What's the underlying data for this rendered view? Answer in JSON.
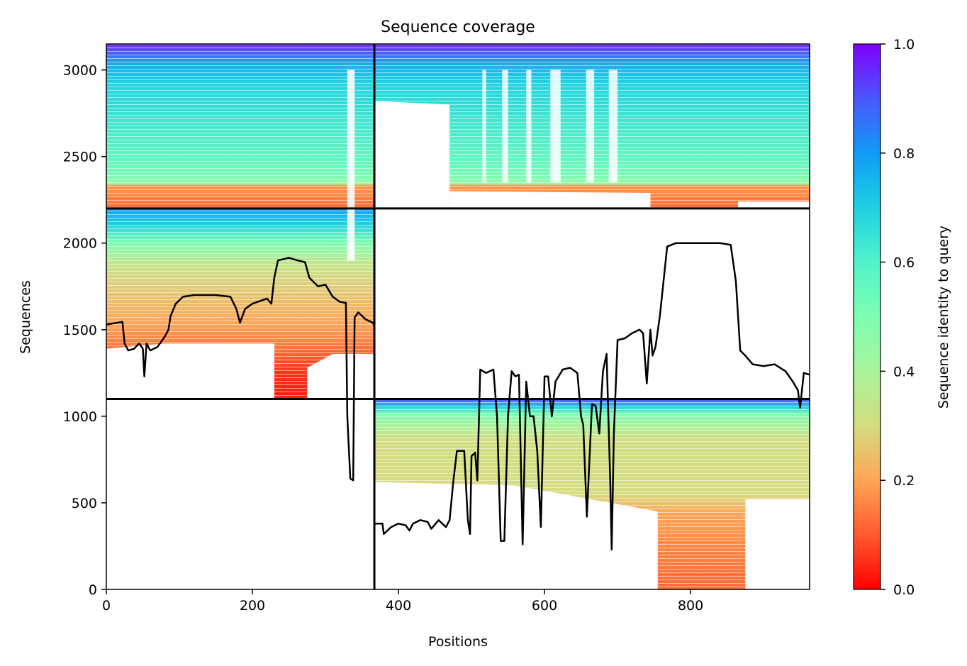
{
  "chart_data": {
    "type": "heatmap",
    "title": "Sequence coverage",
    "xlabel": "Positions",
    "ylabel": "Sequences",
    "xlim": [
      0,
      963
    ],
    "ylim": [
      0,
      3150
    ],
    "x_ticks": [
      "0",
      "200",
      "400",
      "600",
      "800"
    ],
    "x_tick_values": [
      0,
      200,
      400,
      600,
      800
    ],
    "y_ticks": [
      "0",
      "500",
      "1000",
      "1500",
      "2000",
      "2500",
      "3000"
    ],
    "y_tick_values": [
      0,
      500,
      1000,
      1500,
      2000,
      2500,
      3000
    ],
    "colorbar": {
      "label": "Sequence identity to query",
      "range": [
        0.0,
        1.0
      ],
      "ticks": [
        "0.0",
        "0.2",
        "0.4",
        "0.6",
        "0.8",
        "1.0"
      ],
      "tick_values": [
        0.0,
        0.2,
        0.4,
        0.6,
        0.8,
        1.0
      ],
      "colormap": "rainbow_r"
    },
    "chain_boundaries": {
      "x": [
        367
      ],
      "y": [
        1100,
        2200
      ]
    },
    "blocks": [
      {
        "name": "chain-A-only",
        "x_range": [
          0,
          367
        ],
        "y_range": [
          2200,
          3150
        ],
        "identity_top": 1.0,
        "identity_bottom": 0.2
      },
      {
        "name": "chain-B-partial",
        "x_range": [
          367,
          963
        ],
        "y_range": [
          2200,
          3150
        ],
        "identity_top": 1.0,
        "identity_bottom": 0.2
      },
      {
        "name": "chain-A-paired",
        "x_range": [
          0,
          367
        ],
        "y_range": [
          1100,
          2200
        ],
        "identity_top": 0.8,
        "identity_bottom": 0.0
      },
      {
        "name": "chain-B-only",
        "x_range": [
          367,
          963
        ],
        "y_range": [
          0,
          1100
        ],
        "identity_top": 1.0,
        "identity_bottom": 0.2
      }
    ],
    "coverage_line": {
      "color": "#000000",
      "points": [
        [
          0,
          1530
        ],
        [
          15,
          1540
        ],
        [
          22,
          1545
        ],
        [
          25,
          1420
        ],
        [
          30,
          1380
        ],
        [
          38,
          1390
        ],
        [
          45,
          1420
        ],
        [
          50,
          1390
        ],
        [
          52,
          1230
        ],
        [
          55,
          1420
        ],
        [
          60,
          1380
        ],
        [
          70,
          1400
        ],
        [
          80,
          1460
        ],
        [
          85,
          1500
        ],
        [
          88,
          1580
        ],
        [
          95,
          1650
        ],
        [
          105,
          1690
        ],
        [
          120,
          1700
        ],
        [
          150,
          1700
        ],
        [
          170,
          1690
        ],
        [
          178,
          1620
        ],
        [
          183,
          1540
        ],
        [
          190,
          1620
        ],
        [
          200,
          1650
        ],
        [
          220,
          1680
        ],
        [
          226,
          1650
        ],
        [
          230,
          1800
        ],
        [
          235,
          1900
        ],
        [
          250,
          1915
        ],
        [
          262,
          1900
        ],
        [
          272,
          1890
        ],
        [
          278,
          1800
        ],
        [
          290,
          1750
        ],
        [
          300,
          1760
        ],
        [
          310,
          1690
        ],
        [
          320,
          1660
        ],
        [
          328,
          1655
        ],
        [
          330,
          1000
        ],
        [
          334,
          640
        ],
        [
          338,
          630
        ],
        [
          340,
          1570
        ],
        [
          345,
          1600
        ],
        [
          355,
          1560
        ],
        [
          365,
          1540
        ],
        [
          367,
          1520
        ],
        [
          367,
          380
        ],
        [
          378,
          380
        ],
        [
          380,
          320
        ],
        [
          390,
          360
        ],
        [
          400,
          380
        ],
        [
          410,
          370
        ],
        [
          415,
          340
        ],
        [
          420,
          380
        ],
        [
          430,
          400
        ],
        [
          440,
          390
        ],
        [
          445,
          350
        ],
        [
          455,
          400
        ],
        [
          465,
          360
        ],
        [
          470,
          400
        ],
        [
          475,
          620
        ],
        [
          480,
          800
        ],
        [
          490,
          800
        ],
        [
          495,
          400
        ],
        [
          498,
          320
        ],
        [
          500,
          770
        ],
        [
          505,
          790
        ],
        [
          508,
          630
        ],
        [
          512,
          1270
        ],
        [
          520,
          1250
        ],
        [
          530,
          1270
        ],
        [
          535,
          1000
        ],
        [
          540,
          280
        ],
        [
          545,
          280
        ],
        [
          550,
          1000
        ],
        [
          555,
          1260
        ],
        [
          560,
          1230
        ],
        [
          565,
          1240
        ],
        [
          570,
          260
        ],
        [
          575,
          1200
        ],
        [
          580,
          1000
        ],
        [
          585,
          1000
        ],
        [
          590,
          800
        ],
        [
          595,
          360
        ],
        [
          600,
          1230
        ],
        [
          605,
          1230
        ],
        [
          610,
          1000
        ],
        [
          615,
          1200
        ],
        [
          625,
          1270
        ],
        [
          635,
          1280
        ],
        [
          645,
          1250
        ],
        [
          650,
          1000
        ],
        [
          653,
          950
        ],
        [
          658,
          420
        ],
        [
          665,
          1070
        ],
        [
          670,
          1060
        ],
        [
          675,
          900
        ],
        [
          680,
          1260
        ],
        [
          685,
          1360
        ],
        [
          690,
          620
        ],
        [
          692,
          230
        ],
        [
          695,
          900
        ],
        [
          700,
          1440
        ],
        [
          710,
          1450
        ],
        [
          720,
          1480
        ],
        [
          730,
          1500
        ],
        [
          735,
          1480
        ],
        [
          740,
          1190
        ],
        [
          745,
          1500
        ],
        [
          748,
          1350
        ],
        [
          752,
          1400
        ],
        [
          758,
          1580
        ],
        [
          768,
          1980
        ],
        [
          780,
          2000
        ],
        [
          800,
          2000
        ],
        [
          820,
          2000
        ],
        [
          840,
          2000
        ],
        [
          855,
          1990
        ],
        [
          862,
          1780
        ],
        [
          868,
          1380
        ],
        [
          875,
          1350
        ],
        [
          885,
          1300
        ],
        [
          900,
          1290
        ],
        [
          915,
          1300
        ],
        [
          930,
          1260
        ],
        [
          940,
          1200
        ],
        [
          947,
          1150
        ],
        [
          950,
          1050
        ],
        [
          955,
          1250
        ],
        [
          963,
          1240
        ]
      ]
    }
  }
}
